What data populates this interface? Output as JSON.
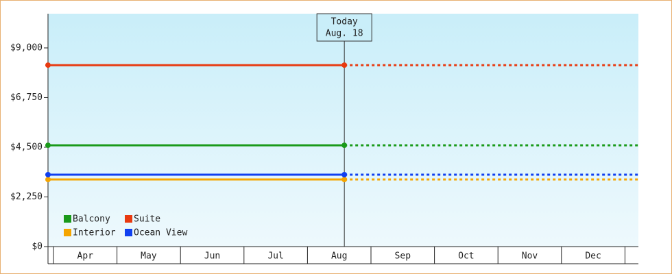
{
  "chart_data": {
    "type": "line",
    "categories": [
      "Apr",
      "May",
      "Jun",
      "Jul",
      "Aug",
      "Sep",
      "Oct",
      "Nov",
      "Dec"
    ],
    "series": [
      {
        "name": "Balcony",
        "color": "#1a9a1a",
        "value": 4590
      },
      {
        "name": "Suite",
        "color": "#e83a10",
        "value": 8220
      },
      {
        "name": "Interior",
        "color": "#f5a500",
        "value": 3040
      },
      {
        "name": "Ocean View",
        "color": "#1040f0",
        "value": 3260
      }
    ],
    "today": {
      "label": "Today",
      "date": "Aug. 18"
    },
    "ylim": [
      0,
      10550
    ],
    "yticks": [
      {
        "value": 0,
        "label": "$0"
      },
      {
        "value": 2250,
        "label": "$2,250"
      },
      {
        "value": 4500,
        "label": "$4,500"
      },
      {
        "value": 6750,
        "label": "$6,750"
      },
      {
        "value": 9000,
        "label": "$9,000"
      }
    ]
  }
}
